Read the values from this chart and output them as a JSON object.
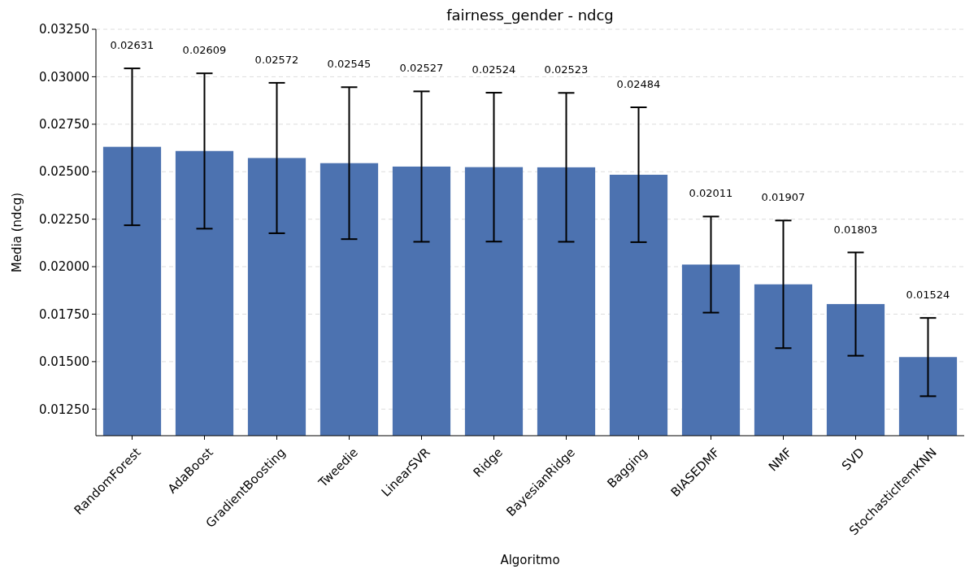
{
  "chart_data": {
    "type": "bar",
    "title": "fairness_gender - ndcg",
    "xlabel": "Algoritmo",
    "ylabel": "Media (ndcg)",
    "categories": [
      "RandomForest",
      "AdaBoost",
      "GradientBoosting",
      "Tweedie",
      "LinearSVR",
      "Ridge",
      "BayesianRidge",
      "Bagging",
      "BIASEDMF",
      "NMF",
      "SVD",
      "StochasticItemKNN"
    ],
    "values": [
      0.02631,
      0.02609,
      0.02572,
      0.02545,
      0.02527,
      0.02524,
      0.02523,
      0.02484,
      0.02011,
      0.01907,
      0.01803,
      0.01524
    ],
    "errors": [
      0.00413,
      0.00409,
      0.00396,
      0.004,
      0.00396,
      0.00392,
      0.00392,
      0.00355,
      0.00253,
      0.00336,
      0.00272,
      0.00206
    ],
    "color": "#4c72b0",
    "annotations": [
      {
        "text": "0.02631",
        "x": "RandomForest",
        "y": 0.03044
      },
      {
        "text": "0.02609",
        "x": "AdaBoost",
        "y": 0.03018
      },
      {
        "text": "0.02572",
        "x": "GradientBoosting",
        "y": 0.02968
      },
      {
        "text": "0.02545",
        "x": "Tweedie",
        "y": 0.02945
      },
      {
        "text": "0.02527",
        "x": "LinearSVR",
        "y": 0.02923
      },
      {
        "text": "0.02524",
        "x": "Ridge",
        "y": 0.02916
      },
      {
        "text": "0.02523",
        "x": "BayesianRidge",
        "y": 0.02915
      },
      {
        "text": "0.02484",
        "x": "Bagging",
        "y": 0.02839
      },
      {
        "text": "0.02011",
        "x": "BIASEDMF",
        "y": 0.02264
      },
      {
        "text": "0.01907",
        "x": "NMF",
        "y": 0.02243
      },
      {
        "text": "0.01803",
        "x": "SVD",
        "y": 0.02075
      },
      {
        "text": "0.01524",
        "x": "StochasticItemKNN",
        "y": 0.0173
      }
    ],
    "grid": "y",
    "ylim": [
      0.0111,
      0.0325
    ],
    "yticks": [
      {
        "value": 0.0125,
        "label": "0.01250"
      },
      {
        "value": 0.015,
        "label": "0.01500"
      },
      {
        "value": 0.0175,
        "label": "0.01750"
      },
      {
        "value": 0.02,
        "label": "0.02000"
      },
      {
        "value": 0.0225,
        "label": "0.02250"
      },
      {
        "value": 0.025,
        "label": "0.02500"
      },
      {
        "value": 0.0275,
        "label": "0.02750"
      },
      {
        "value": 0.03,
        "label": "0.03000"
      },
      {
        "value": 0.0325,
        "label": "0.03250"
      }
    ]
  }
}
